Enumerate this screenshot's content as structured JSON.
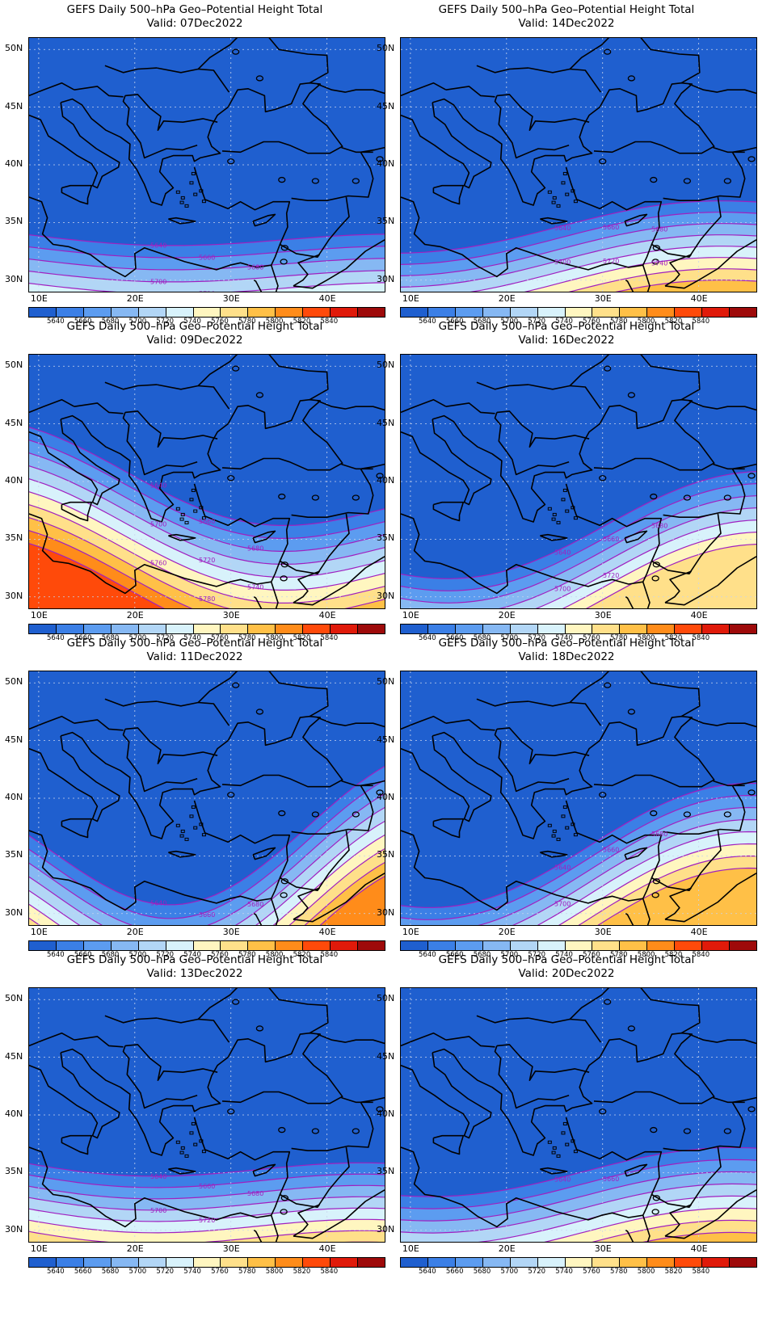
{
  "title_line1": "GEFS Daily 500–hPa Geo–Potential Height Total",
  "valid_prefix": "Valid: ",
  "lat_labels": [
    "50N",
    "45N",
    "40N",
    "35N",
    "30N"
  ],
  "lon_labels": [
    "10E",
    "20E",
    "30E",
    "40E"
  ],
  "colorbar": {
    "ticks": [
      "5640",
      "5660",
      "5680",
      "5700",
      "5720",
      "5740",
      "5760",
      "5780",
      "5800",
      "5820",
      "5840"
    ],
    "colors": [
      "#1f5fcf",
      "#3b7fe6",
      "#5c9cf0",
      "#86b8f3",
      "#b2d6f6",
      "#d8f2fb",
      "#fff6c0",
      "#ffe08a",
      "#ffc047",
      "#ff8c1a",
      "#ff4a0a",
      "#e01a0a",
      "#9e0a0a"
    ]
  },
  "panels": [
    {
      "valid": "07Dec2022",
      "contour_labels": [
        "5640",
        "5660",
        "5680",
        "5700",
        "5720"
      ]
    },
    {
      "valid": "14Dec2022",
      "contour_labels": [
        "5640",
        "5660",
        "5680",
        "5700",
        "5720",
        "5740"
      ]
    },
    {
      "valid": "09Dec2022",
      "contour_labels": [
        "5640",
        "5660",
        "5680",
        "5700",
        "5720",
        "5740",
        "5760",
        "5780",
        "5800"
      ]
    },
    {
      "valid": "16Dec2022",
      "contour_labels": [
        "5640",
        "5660",
        "5680",
        "5700",
        "5720"
      ]
    },
    {
      "valid": "11Dec2022",
      "contour_labels": [
        "5640",
        "5660",
        "5680"
      ]
    },
    {
      "valid": "18Dec2022",
      "contour_labels": [
        "5640",
        "5660",
        "5680",
        "5700"
      ]
    },
    {
      "valid": "13Dec2022",
      "contour_labels": [
        "5640",
        "5660",
        "5680",
        "5700",
        "5720"
      ]
    },
    {
      "valid": "20Dec2022",
      "contour_labels": [
        "5640",
        "5660"
      ]
    }
  ]
}
